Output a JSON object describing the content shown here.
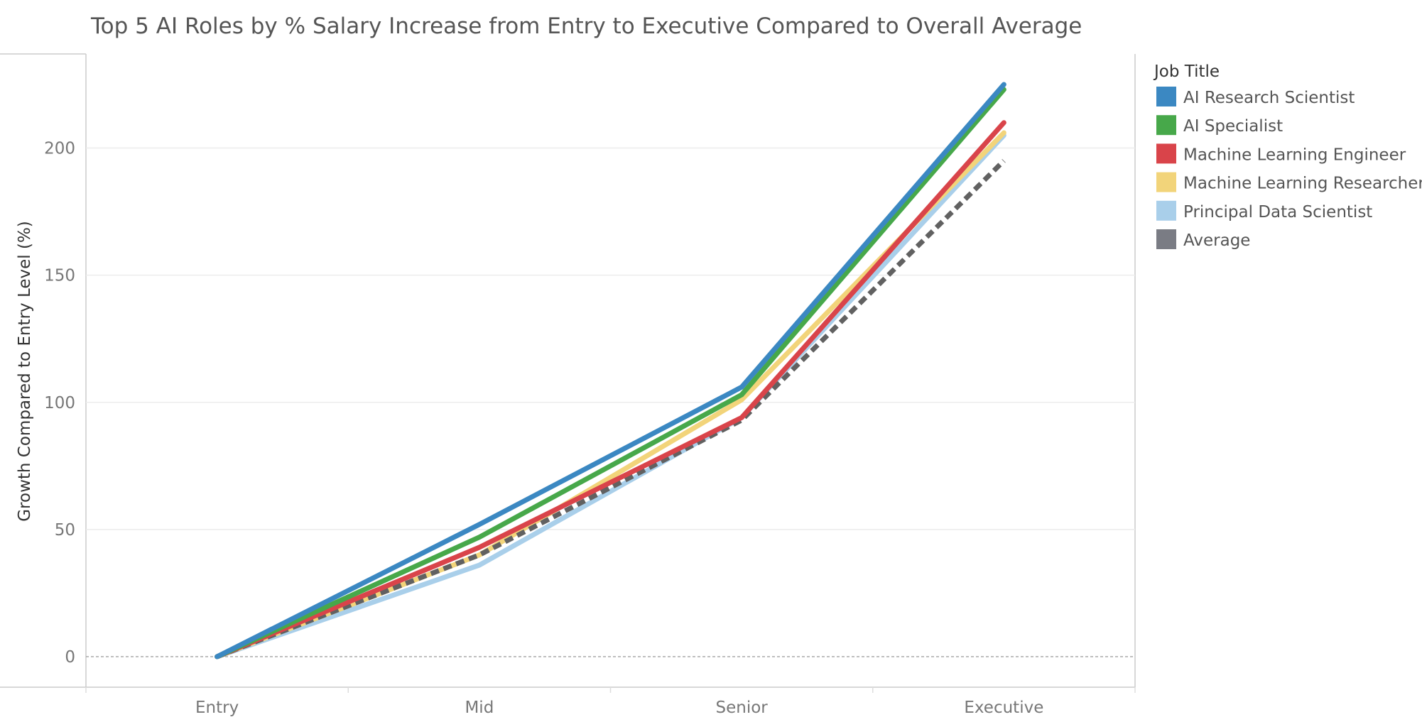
{
  "chart_data": {
    "type": "line",
    "title": "Top 5 AI Roles by % Salary Increase from Entry to Executive Compared to Overall Average",
    "xlabel": "",
    "ylabel": "Growth Compared to Entry Level (%)",
    "categories": [
      "Entry",
      "Mid",
      "Senior",
      "Executive"
    ],
    "ylim": [
      -12,
      237
    ],
    "yticks": [
      0,
      50,
      100,
      150,
      200
    ],
    "grid": true,
    "legend_title": "Job Title",
    "legend_position": "right",
    "series": [
      {
        "name": "Principal Data Scientist",
        "color": "#a9cfea",
        "dash": false,
        "values": [
          0,
          36,
          94,
          205
        ]
      },
      {
        "name": "Machine Learning Researcher",
        "color": "#f2d47a",
        "dash": false,
        "values": [
          0,
          40,
          101,
          206
        ]
      },
      {
        "name": "Average",
        "color": "#616161",
        "dash": true,
        "values": [
          0,
          40,
          93,
          195
        ]
      },
      {
        "name": "Machine Learning Engineer",
        "color": "#d9444a",
        "dash": false,
        "values": [
          0,
          43,
          94,
          210
        ]
      },
      {
        "name": "AI Specialist",
        "color": "#47a84a",
        "dash": false,
        "values": [
          0,
          47,
          103,
          223
        ]
      },
      {
        "name": "AI Research Scientist",
        "color": "#3b88c2",
        "dash": false,
        "values": [
          0,
          52,
          106,
          225
        ]
      }
    ],
    "legend_order": [
      "AI Research Scientist",
      "AI Specialist",
      "Machine Learning Engineer",
      "Machine Learning Researcher",
      "Principal Data Scientist",
      "Average"
    ],
    "legend_swatch_colors": {
      "AI Research Scientist": "#3b88c2",
      "AI Specialist": "#47a84a",
      "Machine Learning Engineer": "#d9444a",
      "Machine Learning Researcher": "#f2d47a",
      "Principal Data Scientist": "#a9cfea",
      "Average": "#7a7c84"
    }
  }
}
